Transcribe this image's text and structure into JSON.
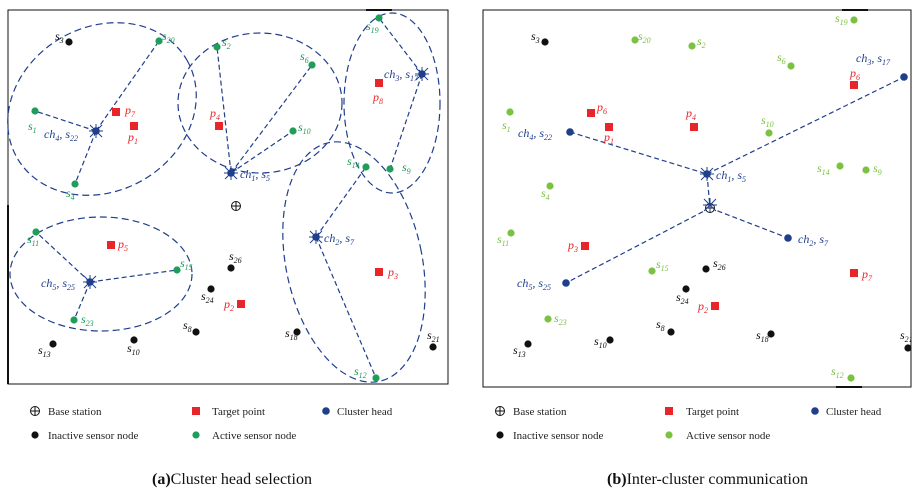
{
  "colors": {
    "inactive": "#111111",
    "active": "#1e9e5a",
    "active_b": "#7cc242",
    "head": "#1f3e8c",
    "target": "#e8262a",
    "link": "#1f3e8c",
    "head_label": "#1f3e8c",
    "target_label": "#e8262a"
  },
  "legend": {
    "base_station": "Base station",
    "target_point": "Target point",
    "cluster_head": "Cluster head",
    "inactive_node": "Inactive sensor node",
    "active_node": "Active sensor node"
  },
  "panels": [
    {
      "id": "a",
      "caption_letter": "(a)",
      "caption_text": "Cluster head selection",
      "heads": [
        {
          "id": "ch4",
          "label": "ch4, s22"
        },
        {
          "id": "ch1",
          "label": "ch1, s5"
        },
        {
          "id": "ch3",
          "label": "ch3, s17"
        },
        {
          "id": "ch2",
          "label": "ch2, s7"
        },
        {
          "id": "ch5",
          "label": "ch5, s25"
        }
      ],
      "active": [
        "s20",
        "s2",
        "s6",
        "s19",
        "s1",
        "s4",
        "s10",
        "s14",
        "s9",
        "s11",
        "s15",
        "s23",
        "s12"
      ],
      "inactive": [
        "s3",
        "s26",
        "s24",
        "s8",
        "s18",
        "s13",
        "s10b",
        "s21"
      ],
      "targets": [
        "p7",
        "p1",
        "p4",
        "p8",
        "p5",
        "p3",
        "p2"
      ]
    },
    {
      "id": "b",
      "caption_letter": "(b)",
      "caption_text": "Inter-cluster communication",
      "heads": [
        {
          "id": "ch4",
          "label": "ch4, s22"
        },
        {
          "id": "ch1",
          "label": "ch1, s5"
        },
        {
          "id": "ch3",
          "label": "ch3, s17"
        },
        {
          "id": "ch2",
          "label": "ch2, s7"
        },
        {
          "id": "ch5",
          "label": "ch5, s25"
        }
      ],
      "active": [
        "s19",
        "s20",
        "s2",
        "s6",
        "s1",
        "s10",
        "s14",
        "s9",
        "s4",
        "s11",
        "s15",
        "s23",
        "s12"
      ],
      "inactive": [
        "s3",
        "s26",
        "s24",
        "s8",
        "s18",
        "s13",
        "s10b",
        "s21"
      ],
      "targets": [
        "p6",
        "p1",
        "p4",
        "p6b",
        "p3",
        "p7",
        "p2"
      ]
    }
  ]
}
